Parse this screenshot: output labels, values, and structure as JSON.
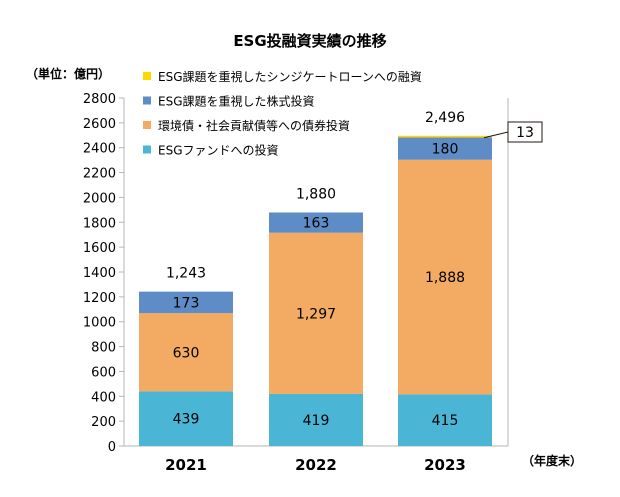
{
  "chart_data": {
    "type": "bar",
    "stacked": true,
    "title": "ESG投融資実績の推移",
    "ylabel": "（単位：億円）",
    "xlabel": "（年度末）",
    "categories": [
      "2021",
      "2022",
      "2023"
    ],
    "ylim": [
      0,
      2800
    ],
    "yticks": [
      0,
      200,
      400,
      600,
      800,
      1000,
      1200,
      1400,
      1600,
      1800,
      2000,
      2200,
      2400,
      2600,
      2800
    ],
    "grid": false,
    "legend_position": "top-left",
    "series": [
      {
        "name": "ESGファンドへの投資",
        "values": [
          439,
          419,
          415
        ],
        "labels": [
          "439",
          "419",
          "415"
        ],
        "color": "#4BB5D5"
      },
      {
        "name": "環境債・社会貢献債等への債券投資",
        "values": [
          630,
          1297,
          1888
        ],
        "labels": [
          "630",
          "1,297",
          "1,888"
        ],
        "color": "#F3AA62"
      },
      {
        "name": "ESG課題を重視した株式投資",
        "values": [
          173,
          163,
          180
        ],
        "labels": [
          "173",
          "163",
          "180"
        ],
        "color": "#5E8CC6"
      },
      {
        "name": "ESG課題を重視したシンジケートローンへの融資",
        "values": [
          0,
          0,
          13
        ],
        "labels": [
          "",
          "",
          "13"
        ],
        "color": "#FFD700"
      }
    ],
    "totals": [
      "1,243",
      "1,880",
      "2,496"
    ],
    "legend_order": [
      3,
      2,
      1,
      0
    ]
  }
}
